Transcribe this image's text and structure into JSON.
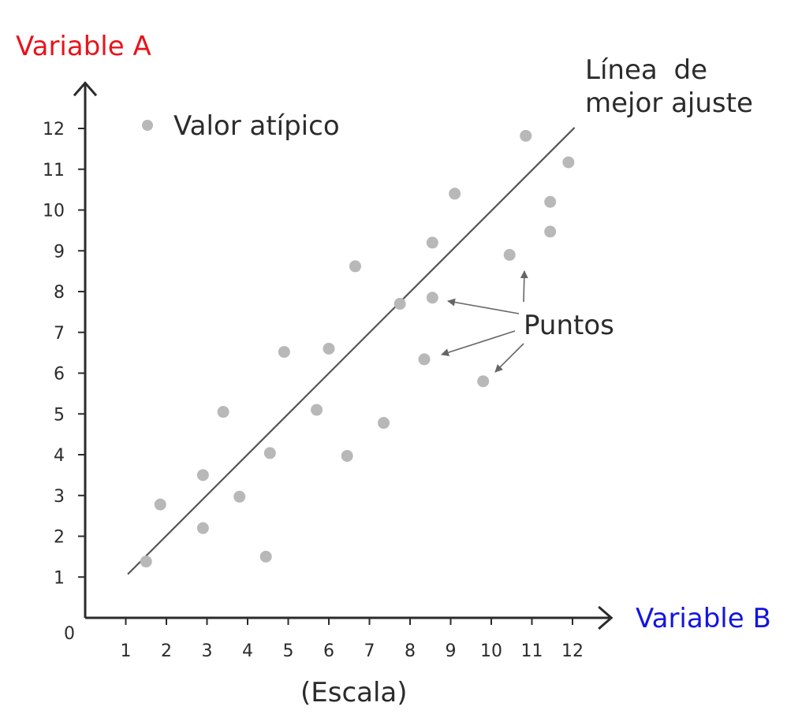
{
  "chart_data": {
    "type": "scatter",
    "ylabel": "Variable A",
    "xlabel": "Variable B",
    "scale_note": "(Escala)",
    "origin_label": "0",
    "xticks": [
      1,
      2,
      3,
      4,
      5,
      6,
      7,
      8,
      9,
      10,
      11,
      12
    ],
    "yticks": [
      1,
      2,
      3,
      4,
      5,
      6,
      7,
      8,
      9,
      10,
      11,
      12
    ],
    "xlim": [
      0,
      12.8
    ],
    "ylim": [
      0,
      13
    ],
    "points": [
      {
        "x": 1.5,
        "y": 1.38
      },
      {
        "x": 1.85,
        "y": 2.78
      },
      {
        "x": 2.9,
        "y": 2.2
      },
      {
        "x": 2.9,
        "y": 3.5
      },
      {
        "x": 3.4,
        "y": 5.05
      },
      {
        "x": 3.8,
        "y": 2.97
      },
      {
        "x": 4.45,
        "y": 1.5
      },
      {
        "x": 4.55,
        "y": 4.04
      },
      {
        "x": 4.9,
        "y": 6.52
      },
      {
        "x": 5.7,
        "y": 5.1
      },
      {
        "x": 6.0,
        "y": 6.6
      },
      {
        "x": 6.45,
        "y": 3.97
      },
      {
        "x": 6.65,
        "y": 8.62
      },
      {
        "x": 7.35,
        "y": 4.78
      },
      {
        "x": 7.75,
        "y": 7.7
      },
      {
        "x": 8.35,
        "y": 6.34
      },
      {
        "x": 8.55,
        "y": 7.85
      },
      {
        "x": 8.55,
        "y": 9.2
      },
      {
        "x": 9.1,
        "y": 10.4
      },
      {
        "x": 9.8,
        "y": 5.8
      },
      {
        "x": 10.45,
        "y": 8.9
      },
      {
        "x": 10.85,
        "y": 11.82
      },
      {
        "x": 11.45,
        "y": 9.47
      },
      {
        "x": 11.45,
        "y": 10.2
      },
      {
        "x": 11.9,
        "y": 11.17
      }
    ],
    "best_fit_line": {
      "x1": 1.05,
      "y1": 1.07,
      "x2": 12.05,
      "y2": 12.02
    },
    "legend": {
      "label": "Valor atípico",
      "placement": "top-left"
    },
    "annotations": {
      "best_fit_label_line1": "Línea",
      "best_fit_label_line2": "de",
      "best_fit_label_line3": "mejor ajuste",
      "points_label": "Puntos"
    },
    "colors": {
      "point": "#b8b8b8",
      "axis": "#2b2b2b",
      "line": "#555555",
      "ylabel": "#e8141b",
      "xlabel": "#1414e0",
      "arrow": "#666666"
    }
  }
}
